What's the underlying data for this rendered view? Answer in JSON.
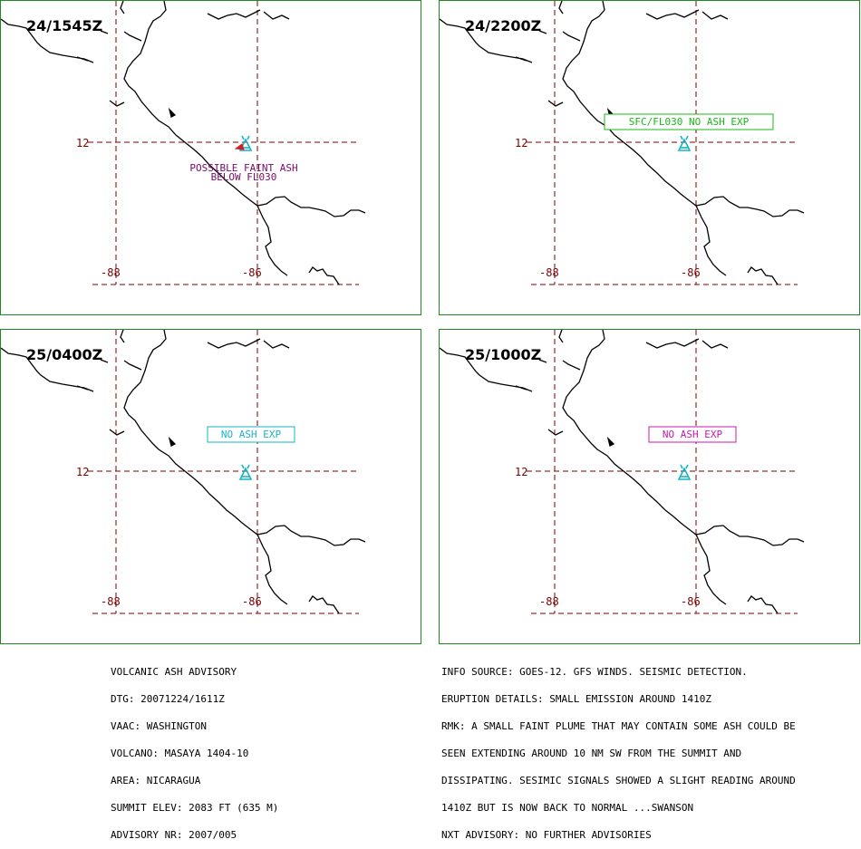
{
  "panels": [
    {
      "time": "24/1545Z",
      "label_lines": [
        "POSSIBLE FAINT ASH",
        "BELOW FL030"
      ],
      "label_color": "#7a0a6a",
      "label_boxed": false
    },
    {
      "time": "24/2200Z",
      "label_lines": [
        "SFC/FL030 NO ASH EXP"
      ],
      "label_color": "#18b818",
      "label_boxed": true
    },
    {
      "time": "25/0400Z",
      "label_lines": [
        "NO ASH EXP"
      ],
      "label_color": "#16b4c8",
      "label_boxed": true
    },
    {
      "time": "25/1000Z",
      "label_lines": [
        "NO ASH EXP"
      ],
      "label_color": "#c818b0",
      "label_boxed": true
    }
  ],
  "axes": {
    "lat_label": "12",
    "lon_labels": [
      "-88",
      "-86"
    ]
  },
  "colors": {
    "grid": "#7a0000",
    "coast": "#000000",
    "border": "#1f8a1f",
    "volcano": "#16b4c8"
  },
  "volcano_icon": "volcano-triangle-icon",
  "footer_left": [
    "VOLCANIC ASH ADVISORY",
    "DTG: 20071224/1611Z",
    "VAAC: WASHINGTON",
    "VOLCANO: MASAYA 1404-10",
    "AREA: NICARAGUA",
    "SUMMIT ELEV: 2083 FT (635 M)",
    "ADVISORY NR: 2007/005"
  ],
  "footer_right": [
    "INFO SOURCE: GOES-12. GFS WINDS. SEISMIC DETECTION.",
    "ERUPTION DETAILS: SMALL EMISSION AROUND 1410Z",
    "RMK: A SMALL FAINT PLUME THAT MAY CONTAIN SOME ASH COULD BE",
    "SEEN EXTENDING AROUND 10 NM SW FROM THE SUMMIT AND",
    "DISSIPATING. SESIMIC SIGNALS SHOWED A SLIGHT READING AROUND",
    "1410Z BUT IS NOW BACK TO NORMAL ...SWANSON",
    "NXT ADVISORY: NO FURTHER ADVISORIES"
  ]
}
